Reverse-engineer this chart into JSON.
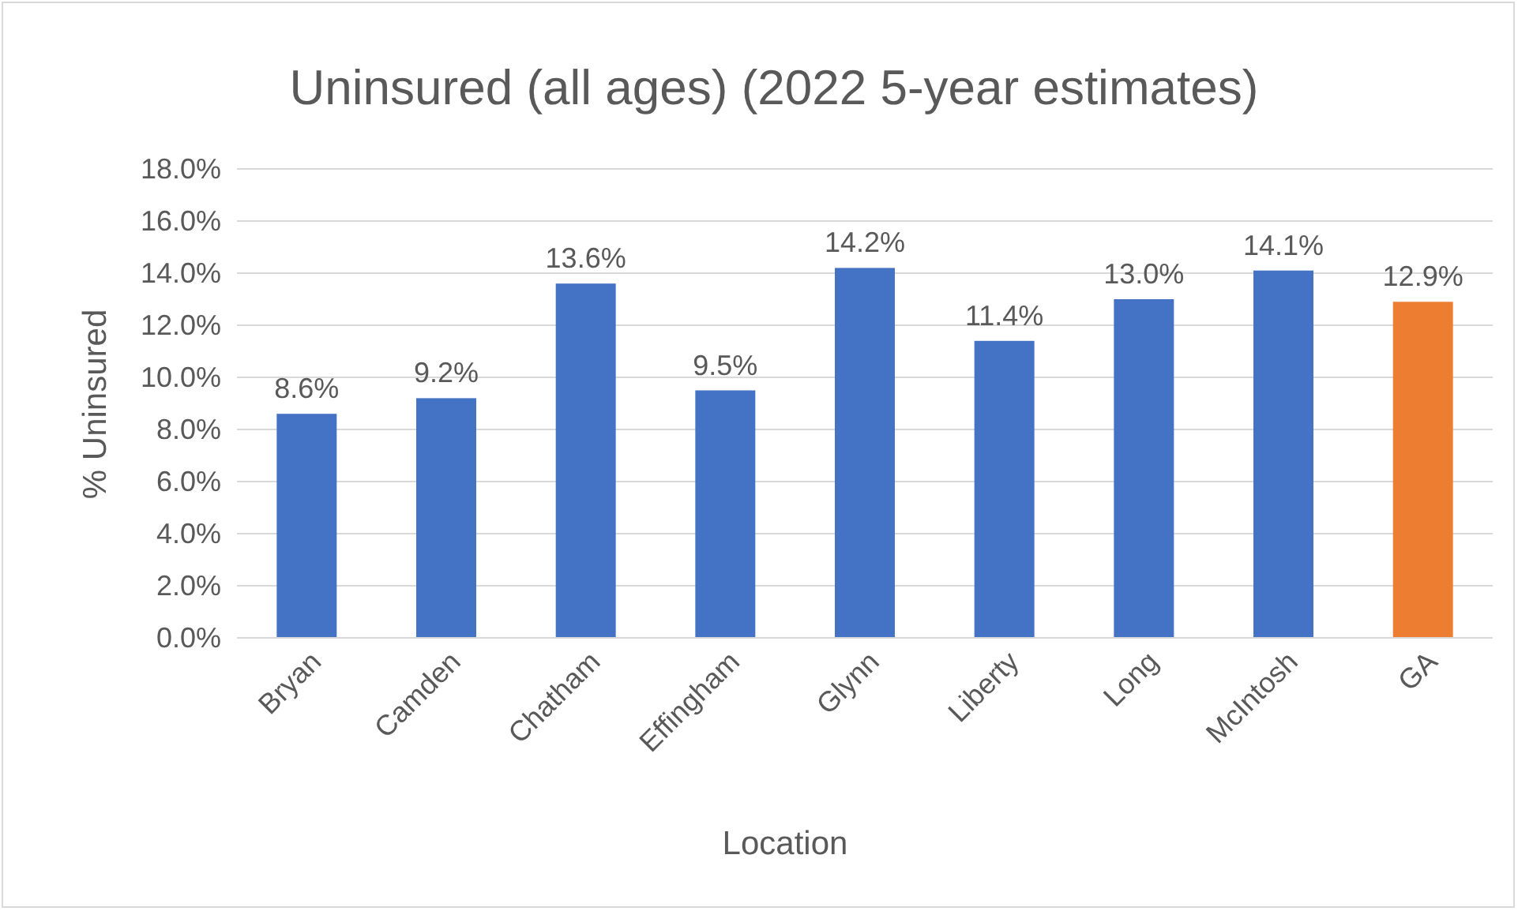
{
  "chart_data": {
    "type": "bar",
    "title": "Uninsured (all ages) (2022 5-year estimates)",
    "xlabel": "Location",
    "ylabel": "% Uninsured",
    "categories": [
      "Bryan",
      "Camden",
      "Chatham",
      "Effingham",
      "Glynn",
      "Liberty",
      "Long",
      "McIntosh",
      "GA"
    ],
    "values": [
      8.6,
      9.2,
      13.6,
      9.5,
      14.2,
      11.4,
      13.0,
      14.1,
      12.9
    ],
    "colors": [
      "#4472c4",
      "#4472c4",
      "#4472c4",
      "#4472c4",
      "#4472c4",
      "#4472c4",
      "#4472c4",
      "#4472c4",
      "#ed7d31"
    ],
    "value_labels": [
      "8.6%",
      "9.2%",
      "13.6%",
      "9.5%",
      "14.2%",
      "11.4%",
      "13.0%",
      "14.1%",
      "12.9%"
    ],
    "ylim": [
      0,
      18
    ],
    "yticks": [
      {
        "value": 0,
        "label": "0.0%"
      },
      {
        "value": 2,
        "label": "2.0%"
      },
      {
        "value": 4,
        "label": "4.0%"
      },
      {
        "value": 6,
        "label": "6.0%"
      },
      {
        "value": 8,
        "label": "8.0%"
      },
      {
        "value": 10,
        "label": "10.0%"
      },
      {
        "value": 12,
        "label": "12.0%"
      },
      {
        "value": 14,
        "label": "14.0%"
      },
      {
        "value": 16,
        "label": "16.0%"
      },
      {
        "value": 18,
        "label": "18.0%"
      }
    ],
    "grid": "y"
  }
}
